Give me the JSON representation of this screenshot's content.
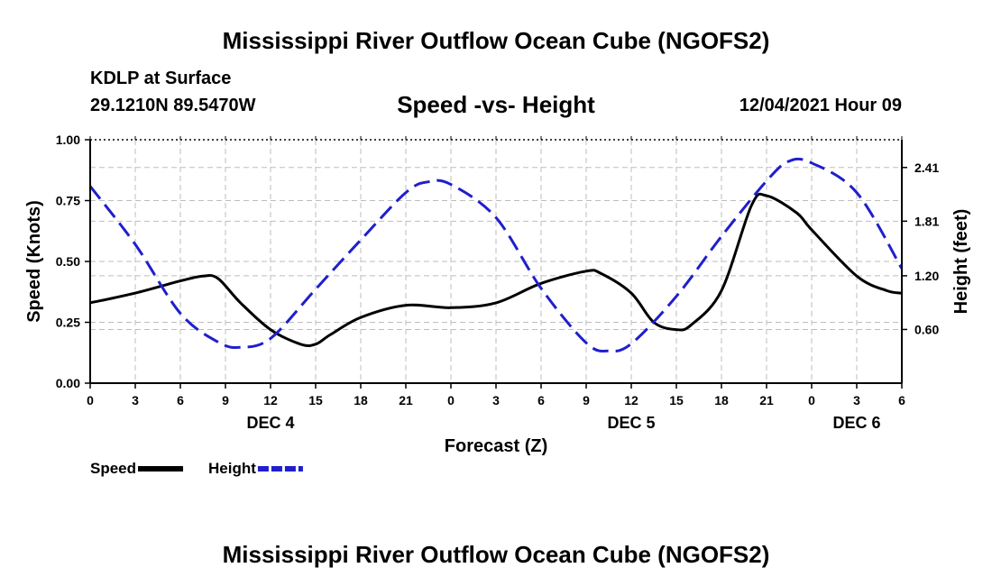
{
  "header": {
    "title": "Mississippi River Outflow Ocean Cube (NGOFS2)",
    "station": "KDLP at Surface",
    "coords": "29.1210N  89.5470W",
    "subtitle": "Speed -vs- Height",
    "datetime": "12/04/2021 Hour 09",
    "footer_title": "Mississippi River Outflow Ocean Cube (NGOFS2)"
  },
  "chart_data": {
    "type": "line",
    "title": "Speed -vs- Height",
    "xlabel": "Forecast (Z)",
    "ylabel_left": "Speed (Knots)",
    "ylabel_right": "Height (feet)",
    "xlim": [
      0,
      54
    ],
    "ylim_left": [
      0,
      1.0
    ],
    "ylim_right": [
      0.0,
      2.72
    ],
    "x_ticks": [
      0,
      3,
      6,
      9,
      12,
      15,
      18,
      21,
      24,
      27,
      30,
      33,
      36,
      39,
      42,
      45,
      48,
      51,
      54
    ],
    "x_tick_labels": [
      "0",
      "3",
      "6",
      "9",
      "12",
      "15",
      "18",
      "21",
      "0",
      "3",
      "6",
      "9",
      "12",
      "15",
      "18",
      "21",
      "0",
      "3",
      "6"
    ],
    "left_ticks": [
      0.0,
      0.25,
      0.5,
      0.75,
      1.0
    ],
    "left_tick_labels": [
      "0.00",
      "0.25",
      "0.50",
      "0.75",
      "1.00"
    ],
    "right_ticks": [
      0.6,
      1.2,
      1.81,
      2.41
    ],
    "right_tick_labels": [
      "0.60",
      "1.20",
      "1.81",
      "2.41"
    ],
    "date_labels": [
      {
        "x": 12,
        "text": "DEC 4"
      },
      {
        "x": 36,
        "text": "DEC 5"
      },
      {
        "x": 51,
        "text": "DEC 6"
      }
    ],
    "grid": true,
    "series": [
      {
        "name": "Speed",
        "axis": "left",
        "color": "#000000",
        "dash": "solid",
        "x": [
          0,
          3,
          6,
          7.5,
          8.5,
          10,
          12,
          14,
          15,
          16,
          18,
          21,
          24,
          27,
          30,
          33,
          34,
          36,
          37.5,
          39,
          40,
          42,
          44,
          45,
          47,
          48,
          51,
          53,
          54
        ],
        "values": [
          0.33,
          0.37,
          0.42,
          0.44,
          0.43,
          0.33,
          0.22,
          0.16,
          0.16,
          0.2,
          0.27,
          0.32,
          0.31,
          0.33,
          0.41,
          0.46,
          0.45,
          0.37,
          0.25,
          0.22,
          0.24,
          0.38,
          0.73,
          0.77,
          0.7,
          0.63,
          0.44,
          0.38,
          0.37
        ]
      },
      {
        "name": "Height",
        "axis": "right",
        "color": "#1f1fcc",
        "dash": "dashed",
        "x": [
          0,
          3,
          6,
          8.5,
          10,
          12,
          15,
          18,
          21,
          22.5,
          24,
          27,
          30,
          33,
          34.5,
          36,
          39,
          42,
          45,
          46.5,
          48,
          51,
          54
        ],
        "values": [
          2.2,
          1.55,
          0.78,
          0.46,
          0.4,
          0.5,
          1.05,
          1.6,
          2.13,
          2.25,
          2.22,
          1.85,
          1.06,
          0.45,
          0.36,
          0.44,
          0.97,
          1.64,
          2.26,
          2.48,
          2.46,
          2.13,
          1.28
        ]
      }
    ],
    "legend": [
      {
        "label": "Speed",
        "color": "#000000",
        "dash": "solid"
      },
      {
        "label": "Height",
        "color": "#1f1fcc",
        "dash": "dashed"
      }
    ]
  }
}
